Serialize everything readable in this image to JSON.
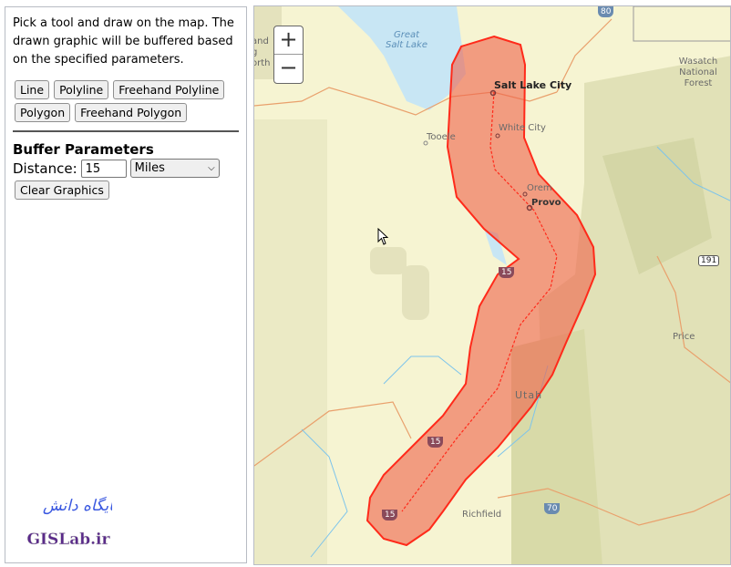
{
  "panel": {
    "intro": "Pick a tool and draw on the map. The drawn graphic will be buffered based on the specified parameters.",
    "tools": [
      "Line",
      "Polyline",
      "Freehand Polyline",
      "Polygon",
      "Freehand Polygon"
    ],
    "buffer_title": "Buffer Parameters",
    "distance_label": "Distance:",
    "distance_value": "15",
    "unit_selected": "Miles",
    "clear_label": "Clear Graphics",
    "logo_text": "GISLab.ir",
    "logo_persian": "پایگاه دانش"
  },
  "map": {
    "zoom_in": "+",
    "zoom_out": "−",
    "labels": {
      "lake": "Great Salt Lake",
      "slc": "Salt Lake City",
      "white_city": "White City",
      "tooele": "Tooele",
      "orem": "Orem",
      "provo": "Provo",
      "wasatch": "Wasatch National Forest",
      "utah": "Utah",
      "price": "Price",
      "richfield": "Richfield",
      "edge": "and g orth"
    },
    "shields": {
      "i80": "80",
      "i15a": "15",
      "i15b": "15",
      "i15c": "15",
      "i70": "70",
      "us191": "191"
    },
    "buffer_color": "#f0604a",
    "outline_color": "#ff2a1a"
  }
}
